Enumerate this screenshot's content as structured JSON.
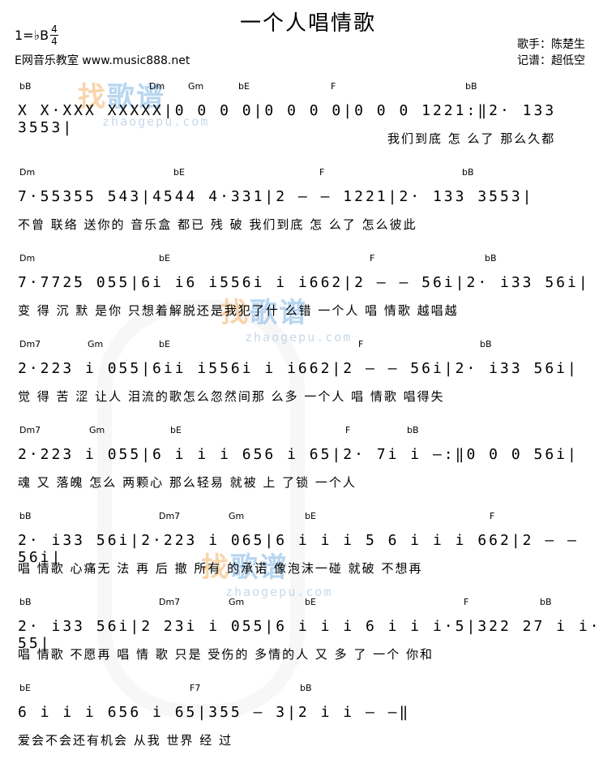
{
  "header": {
    "title": "一个人唱情歌",
    "key": "1=♭B",
    "time_signature": {
      "top": "4",
      "bottom": "4"
    },
    "source": "E网音乐教室 www.music888.net",
    "singer": "歌手：陈楚生",
    "transcriber": "记谱：超低空"
  },
  "watermark": {
    "logo_1": "找",
    "logo_2": "歌谱",
    "url": "zhaogepu.com"
  },
  "rows": [
    {
      "chords": [
        "bB",
        "Dm",
        "Gm",
        "bE",
        "F",
        "bB"
      ],
      "notes": "X X·XXX XXXXX|0 0 0 0|0 0 0 0|0 0 0 1221:‖2· 133 3553|",
      "lyrics": "我们到底 怎 么了 那么久都"
    },
    {
      "chords": [
        "Dm",
        "bE",
        "F",
        "bB"
      ],
      "notes": "7·55355 543|4544 4·331|2 — — 1221|2· 133 3553|",
      "lyrics": "不曾 联络 送你的 音乐盒 都已 残 破 我们到底 怎 么了 怎么彼此"
    },
    {
      "chords": [
        "Dm",
        "bE",
        "F",
        "bB"
      ],
      "notes": "7·772̇5 055|6i i6 i556i i i662|2 — — 56i|2· i33 56i|",
      "lyrics": "变 得 沉 默 是你 只想着解脱还是我犯了什 么错 一个人 唱 情歌 越唱越"
    },
    {
      "chords": [
        "Dm7",
        "Gm",
        "bE",
        "F",
        "bB"
      ],
      "notes": "2·223 i 055|6ii i556i i i662|2 — — 56i|2· i33 56i|",
      "lyrics": "觉 得 苦 涩 让人 泪流的歌怎么忽然间那 么多 一个人 唱 情歌 唱得失"
    },
    {
      "chords": [
        "Dm7",
        "Gm",
        "bE",
        "F",
        "bB"
      ],
      "notes": "2·223 i 055|6 i i i 656 i 65|2· 7i i —:‖0 0 0 56i|",
      "lyrics": "魂 又 落魄 怎么 两颗心 那么轻易 就被 上 了锁 一个人"
    },
    {
      "chords": [
        "bB",
        "Dm7",
        "Gm",
        "bE",
        "F"
      ],
      "notes": "2· i33 56i|2·223 i 065|6 i i i 5 6 i i i 662|2 — — 56i|",
      "lyrics": "唱 情歌 心痛无 法 再 后 撤 所有 的承诺 像泡沫一碰 就破 不想再"
    },
    {
      "chords": [
        "bB",
        "Dm7",
        "Gm",
        "bE",
        "F",
        "bB"
      ],
      "notes": "2· i33 56i|2 23i i 055|6 i i i 6 i i i·5|322 27 i i· 55|",
      "lyrics": "唱 情歌 不愿再 唱 情 歌 只是 受伤的 多情的人 又 多 了 一个 你和"
    },
    {
      "chords": [
        "bE",
        "F7",
        "bB"
      ],
      "notes": "6 i i i 656 i 65|355 — 3|2 i i — —‖",
      "lyrics": "爱会不会还有机会 从我 世界 经 过"
    }
  ]
}
